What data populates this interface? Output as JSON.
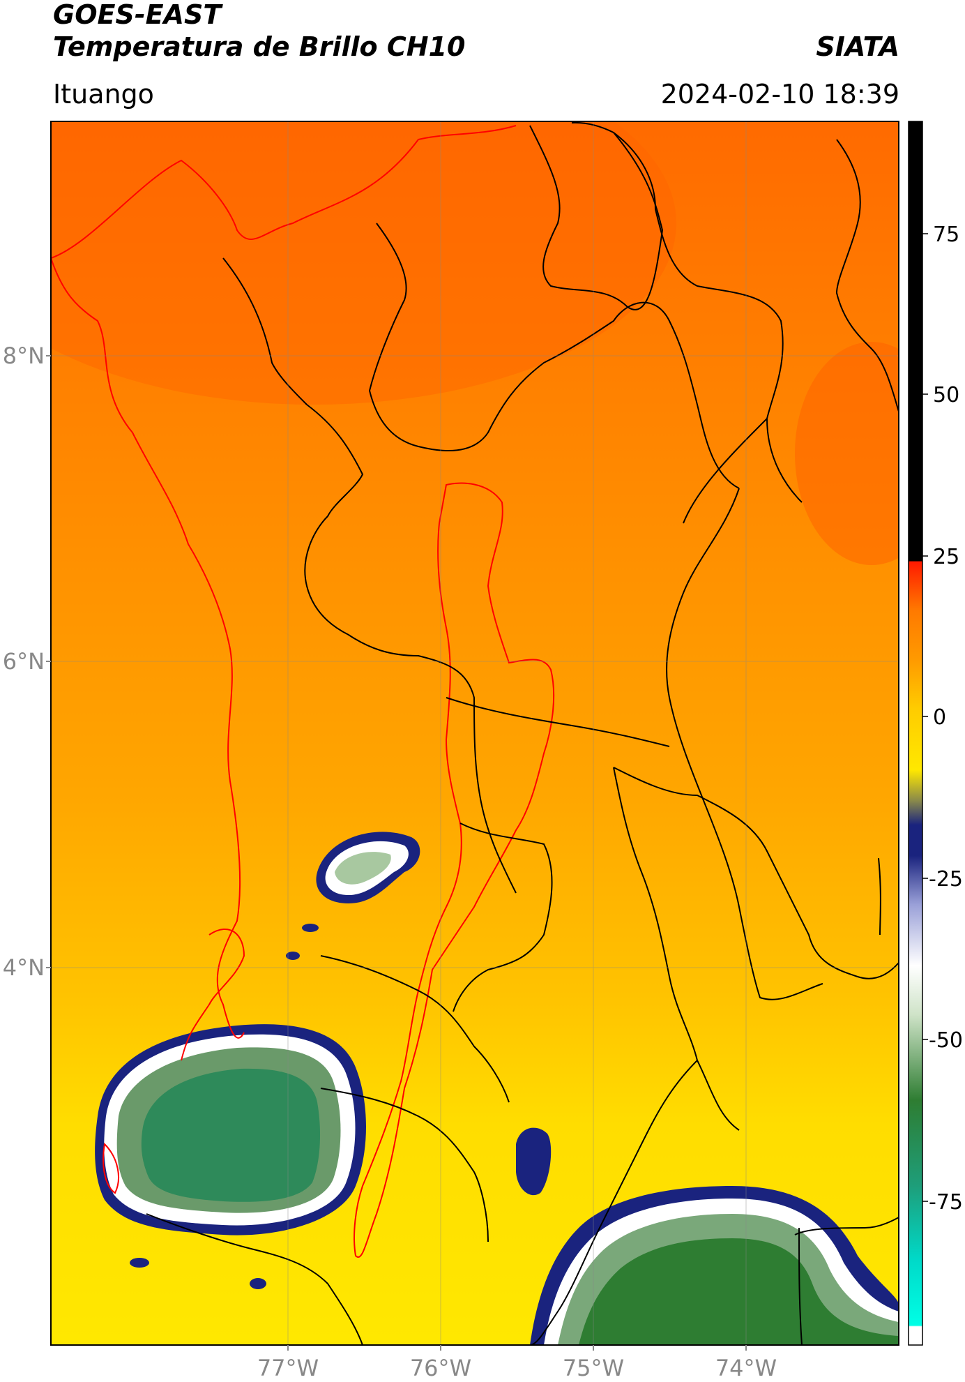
{
  "header": {
    "title_line1": "GOES-EAST",
    "title_line2": "Temperatura de Brillo CH10",
    "organization": "SIATA",
    "region": "Ituango",
    "datetime": "2024-02-10 18:39"
  },
  "map": {
    "lat_ticks": [
      {
        "value": 8,
        "label": "8°N"
      },
      {
        "value": 6,
        "label": "6°N"
      },
      {
        "value": 4,
        "label": "4°N"
      }
    ],
    "lon_ticks": [
      {
        "value": -77,
        "label": "77°W"
      },
      {
        "value": -76,
        "label": "76°W"
      },
      {
        "value": -75,
        "label": "75°W"
      },
      {
        "value": -74,
        "label": "74°W"
      }
    ],
    "colors": {
      "orange": "#ff7a00",
      "yellow": "#ffe800",
      "navy": "#1a237e",
      "green": "#2e7d32",
      "teal": "#1abc9c",
      "border_black": "#000000",
      "basin_red": "#ff0000"
    }
  },
  "colorbar": {
    "ticks": [
      {
        "value": 75,
        "label": "75"
      },
      {
        "value": 50,
        "label": "50"
      },
      {
        "value": 25,
        "label": "25"
      },
      {
        "value": 0,
        "label": "0"
      },
      {
        "value": -25,
        "label": "-25"
      },
      {
        "value": -50,
        "label": "-50"
      },
      {
        "value": -75,
        "label": "-75"
      }
    ]
  }
}
